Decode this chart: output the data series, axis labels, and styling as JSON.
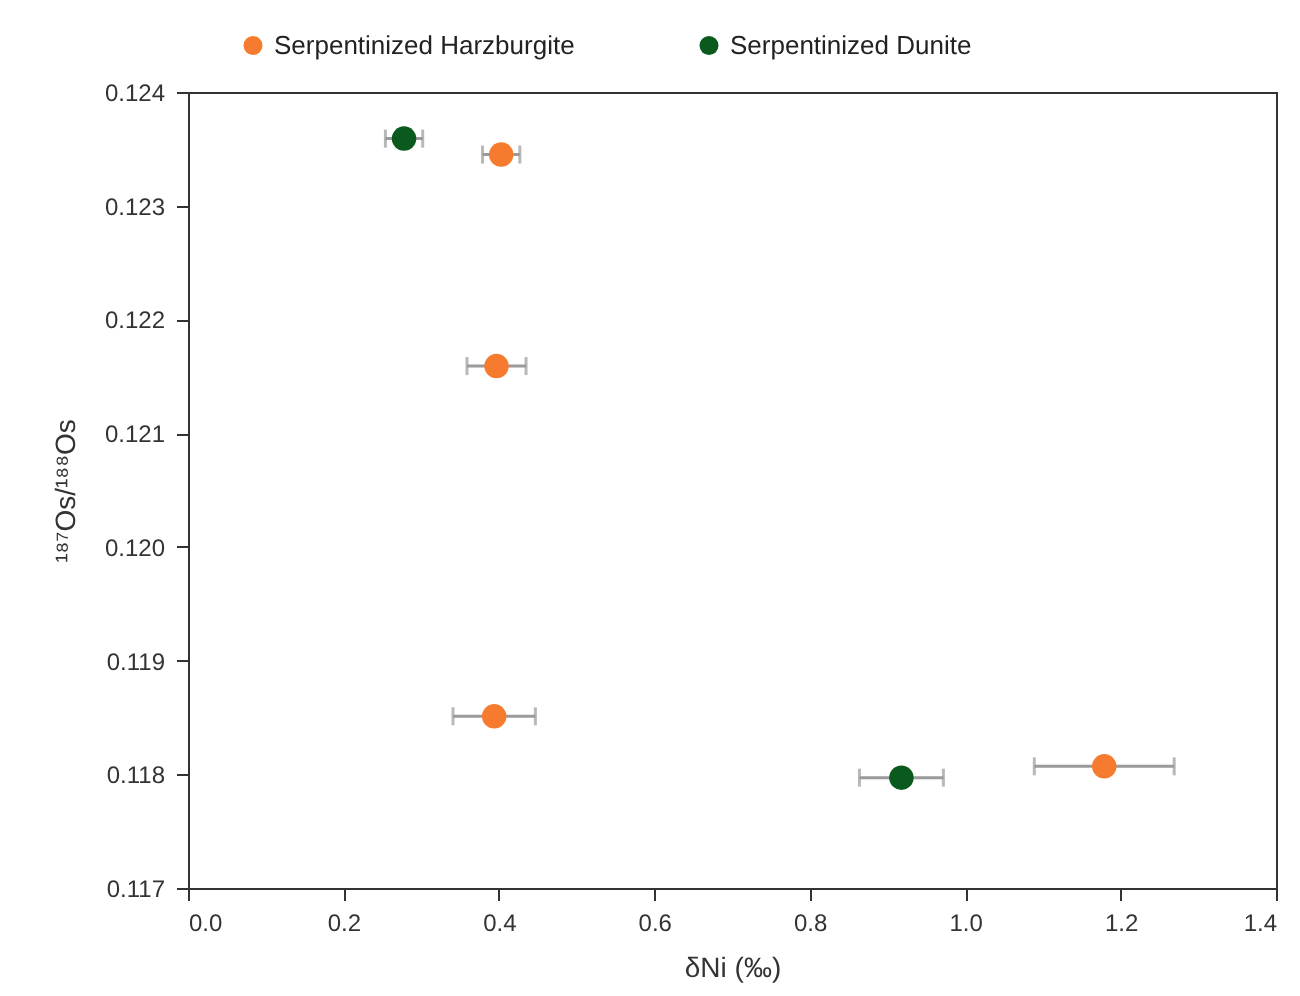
{
  "chart_data": {
    "type": "scatter",
    "xlabel": "δNi (‰)",
    "ylabel": "¹⁸⁷Os/¹⁸⁸Os",
    "xlim": [
      0,
      1.4
    ],
    "xticks": [
      {
        "value": 0,
        "label": "0.0"
      },
      0.2,
      0.4,
      0.6,
      0.8,
      {
        "value": 1,
        "label": "1.0"
      },
      1.2,
      1.4
    ],
    "ylim": [
      0.117,
      0.124
    ],
    "yticks": [
      0.117,
      0.118,
      0.119,
      {
        "value": 0.12,
        "label": "0.120"
      },
      0.121,
      0.122,
      0.123,
      0.124
    ],
    "grid": false,
    "legend": "top",
    "marker": "circle",
    "series": [
      {
        "name": "Serpentinized Harzburgite",
        "color": "#f77b2f",
        "x": [
          0.403,
          0.397,
          0.394,
          1.179
        ],
        "values": [
          0.12345,
          0.12159,
          0.11851,
          0.11807
        ],
        "xerrors": [
          0.024,
          0.038,
          0.053,
          0.09
        ]
      },
      {
        "name": "Serpentinized Dunite",
        "color": "#0b5a1d",
        "x": [
          0.278,
          0.918
        ],
        "values": [
          0.12359,
          0.11797
        ],
        "xerrors": [
          0.024,
          0.054
        ]
      }
    ]
  }
}
